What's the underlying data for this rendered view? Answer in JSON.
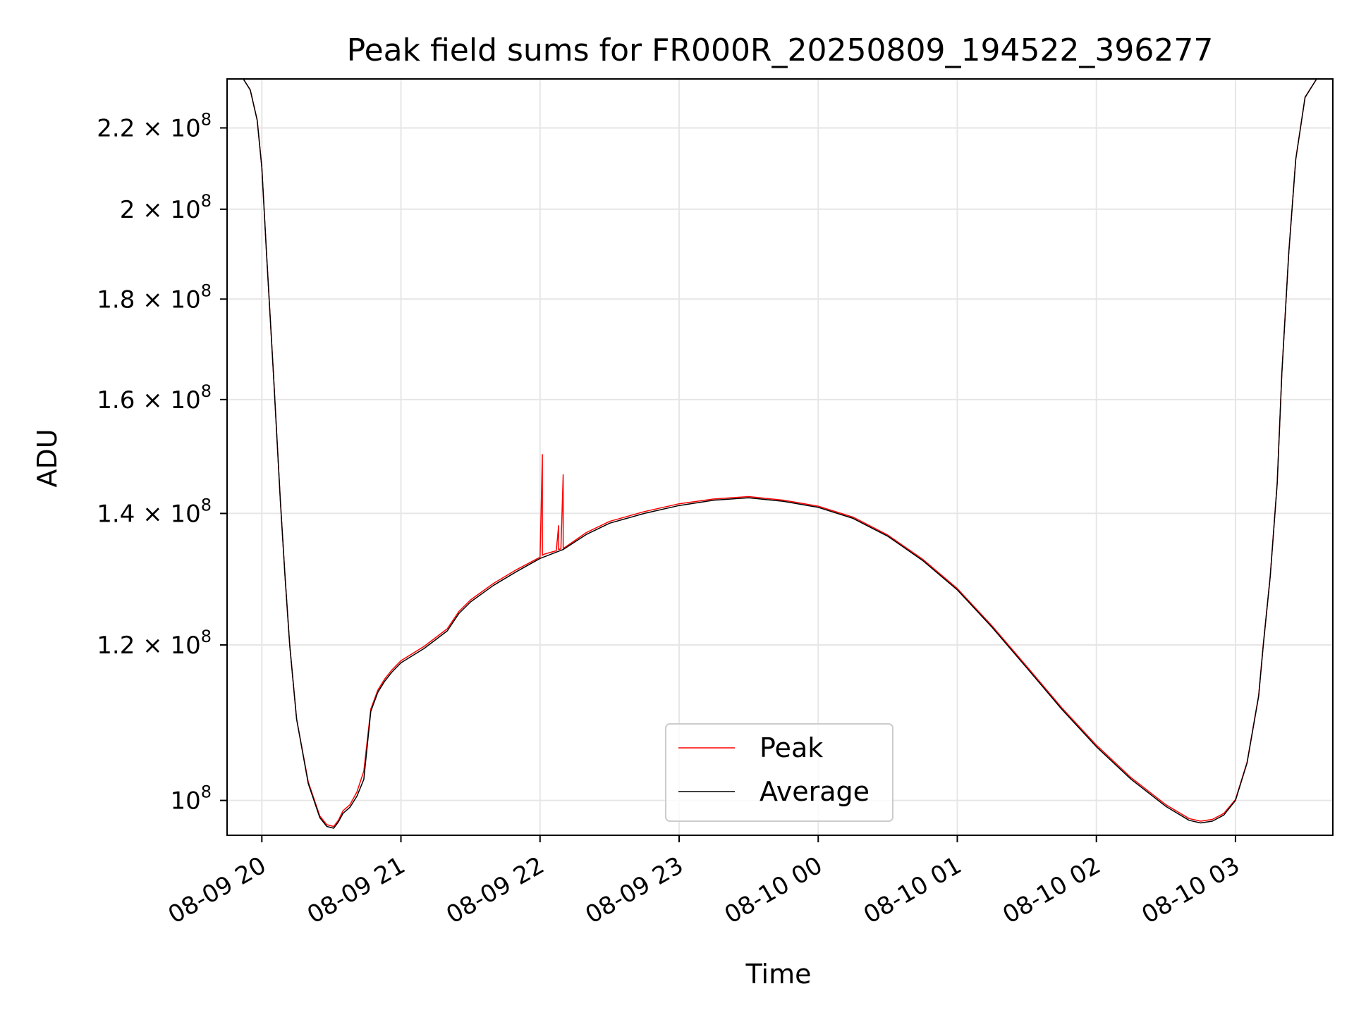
{
  "chart_data": {
    "type": "line",
    "title": "Peak field sums for FR000R_20250809_194522_396277",
    "xlabel": "Time",
    "ylabel": "ADU",
    "y_scale": "log",
    "grid": true,
    "legend_position": "lower-center",
    "xlim": [
      "2025-08-09 19:45",
      "2025-08-10 03:42"
    ],
    "ylim": [
      96000000,
      233000000
    ],
    "x_ticks": [
      {
        "value": "2025-08-09 20:00",
        "label": "08-09 20"
      },
      {
        "value": "2025-08-09 21:00",
        "label": "08-09 21"
      },
      {
        "value": "2025-08-09 22:00",
        "label": "08-09 22"
      },
      {
        "value": "2025-08-09 23:00",
        "label": "08-09 23"
      },
      {
        "value": "2025-08-10 00:00",
        "label": "08-10 00"
      },
      {
        "value": "2025-08-10 01:00",
        "label": "08-10 01"
      },
      {
        "value": "2025-08-10 02:00",
        "label": "08-10 02"
      },
      {
        "value": "2025-08-10 03:00",
        "label": "08-10 03"
      }
    ],
    "y_ticks": [
      {
        "value": 100000000,
        "mantissa": "10",
        "exponent": "8"
      },
      {
        "value": 120000000,
        "mantissa": "1.2 × 10",
        "exponent": "8"
      },
      {
        "value": 140000000,
        "mantissa": "1.4 × 10",
        "exponent": "8"
      },
      {
        "value": 160000000,
        "mantissa": "1.6 × 10",
        "exponent": "8"
      },
      {
        "value": 180000000,
        "mantissa": "1.8 × 10",
        "exponent": "8"
      },
      {
        "value": 200000000,
        "mantissa": "2 × 10",
        "exponent": "8"
      },
      {
        "value": 220000000,
        "mantissa": "2.2 × 10",
        "exponent": "8"
      }
    ],
    "series": [
      {
        "name": "Average",
        "color": "#000000",
        "x": [
          "2025-08-09 19:45",
          "2025-08-09 19:52",
          "2025-08-09 19:55",
          "2025-08-09 19:58",
          "2025-08-09 20:00",
          "2025-08-09 20:02",
          "2025-08-09 20:05",
          "2025-08-09 20:08",
          "2025-08-09 20:10",
          "2025-08-09 20:12",
          "2025-08-09 20:15",
          "2025-08-09 20:20",
          "2025-08-09 20:25",
          "2025-08-09 20:28",
          "2025-08-09 20:31",
          "2025-08-09 20:33",
          "2025-08-09 20:35",
          "2025-08-09 20:38",
          "2025-08-09 20:41",
          "2025-08-09 20:44",
          "2025-08-09 20:47",
          "2025-08-09 20:50",
          "2025-08-09 20:52",
          "2025-08-09 20:53",
          "2025-08-09 20:56",
          "2025-08-09 21:00",
          "2025-08-09 21:10",
          "2025-08-09 21:20",
          "2025-08-09 21:25",
          "2025-08-09 21:30",
          "2025-08-09 21:40",
          "2025-08-09 21:50",
          "2025-08-09 22:00",
          "2025-08-09 22:10",
          "2025-08-09 22:20",
          "2025-08-09 22:30",
          "2025-08-09 22:45",
          "2025-08-09 23:00",
          "2025-08-09 23:15",
          "2025-08-09 23:30",
          "2025-08-09 23:45",
          "2025-08-10 00:00",
          "2025-08-10 00:15",
          "2025-08-10 00:30",
          "2025-08-10 00:45",
          "2025-08-10 01:00",
          "2025-08-10 01:15",
          "2025-08-10 01:30",
          "2025-08-10 01:45",
          "2025-08-10 02:00",
          "2025-08-10 02:15",
          "2025-08-10 02:30",
          "2025-08-10 02:40",
          "2025-08-10 02:45",
          "2025-08-10 02:50",
          "2025-08-10 02:55",
          "2025-08-10 03:00",
          "2025-08-10 03:05",
          "2025-08-10 03:10",
          "2025-08-10 03:12",
          "2025-08-10 03:15",
          "2025-08-10 03:18",
          "2025-08-10 03:20",
          "2025-08-10 03:23",
          "2025-08-10 03:26",
          "2025-08-10 03:30",
          "2025-08-10 03:35",
          "2025-08-10 03:42"
        ],
        "values": [
          233000000,
          233000000,
          230000000,
          222000000,
          210000000,
          190000000,
          165000000,
          142000000,
          130000000,
          120000000,
          110000000,
          102000000,
          98000000,
          97000000,
          96800000,
          97500000,
          98500000,
          99200000,
          100500000,
          102500000,
          111000000,
          113500000,
          114500000,
          115000000,
          116200000,
          117500000,
          119500000,
          122000000,
          124500000,
          126200000,
          128700000,
          130800000,
          132800000,
          134200000,
          136600000,
          138400000,
          140000000,
          141300000,
          142200000,
          142600000,
          142000000,
          141000000,
          139200000,
          136300000,
          132500000,
          128000000,
          122500000,
          116800000,
          111300000,
          106500000,
          102500000,
          99300000,
          97700000,
          97400000,
          97600000,
          98300000,
          100000000,
          104500000,
          113000000,
          120000000,
          130000000,
          145000000,
          165000000,
          190000000,
          212000000,
          228000000,
          233000000,
          233000000
        ]
      },
      {
        "name": "Peak",
        "color": "#ff0000",
        "x": [
          "2025-08-09 19:45",
          "2025-08-09 19:52",
          "2025-08-09 19:55",
          "2025-08-09 19:58",
          "2025-08-09 20:00",
          "2025-08-09 20:02",
          "2025-08-09 20:05",
          "2025-08-09 20:08",
          "2025-08-09 20:10",
          "2025-08-09 20:12",
          "2025-08-09 20:15",
          "2025-08-09 20:20",
          "2025-08-09 20:25",
          "2025-08-09 20:28",
          "2025-08-09 20:31",
          "2025-08-09 20:33",
          "2025-08-09 20:35",
          "2025-08-09 20:38",
          "2025-08-09 20:41",
          "2025-08-09 20:44",
          "2025-08-09 20:47",
          "2025-08-09 20:50",
          "2025-08-09 20:52",
          "2025-08-09 20:53",
          "2025-08-09 20:56",
          "2025-08-09 21:00",
          "2025-08-09 21:10",
          "2025-08-09 21:20",
          "2025-08-09 21:25",
          "2025-08-09 21:30",
          "2025-08-09 21:40",
          "2025-08-09 21:50",
          "2025-08-09 22:00",
          "2025-08-09 22:01",
          "2025-08-09 22:01",
          "2025-08-09 22:02",
          "2025-08-09 22:07",
          "2025-08-09 22:08",
          "2025-08-09 22:08",
          "2025-08-09 22:09",
          "2025-08-09 22:10",
          "2025-08-09 22:10",
          "2025-08-09 22:11",
          "2025-08-09 22:20",
          "2025-08-09 22:30",
          "2025-08-09 22:45",
          "2025-08-09 23:00",
          "2025-08-09 23:15",
          "2025-08-09 23:30",
          "2025-08-09 23:45",
          "2025-08-10 00:00",
          "2025-08-10 00:15",
          "2025-08-10 00:30",
          "2025-08-10 00:45",
          "2025-08-10 01:00",
          "2025-08-10 01:15",
          "2025-08-10 01:30",
          "2025-08-10 01:45",
          "2025-08-10 02:00",
          "2025-08-10 02:15",
          "2025-08-10 02:30",
          "2025-08-10 02:40",
          "2025-08-10 02:45",
          "2025-08-10 02:50",
          "2025-08-10 02:55",
          "2025-08-10 03:00",
          "2025-08-10 03:05",
          "2025-08-10 03:10",
          "2025-08-10 03:12",
          "2025-08-10 03:15",
          "2025-08-10 03:18",
          "2025-08-10 03:20",
          "2025-08-10 03:23",
          "2025-08-10 03:26",
          "2025-08-10 03:30",
          "2025-08-10 03:35",
          "2025-08-10 03:42"
        ],
        "values": [
          233000000,
          233000000,
          230000000,
          222000000,
          210000000,
          190000000,
          165000000,
          142000000,
          130000000,
          120000000,
          110000000,
          102200000,
          98200000,
          97200000,
          97000000,
          97700000,
          98800000,
          99500000,
          101000000,
          103500000,
          111300000,
          113800000,
          114800000,
          115300000,
          116500000,
          117800000,
          119800000,
          122300000,
          124800000,
          126500000,
          129000000,
          131100000,
          133000000,
          150000000,
          133300000,
          133500000,
          134000000,
          138000000,
          134200000,
          134300000,
          146500000,
          134400000,
          134600000,
          136900000,
          138700000,
          140300000,
          141600000,
          142400000,
          142800000,
          142200000,
          141200000,
          139400000,
          136500000,
          132700000,
          128200000,
          122700000,
          117000000,
          111500000,
          106700000,
          102700000,
          99500000,
          97900000,
          97600000,
          97800000,
          98500000,
          100100000,
          104600000,
          113100000,
          120100000,
          130100000,
          145100000,
          165100000,
          190100000,
          212100000,
          228100000,
          233000000,
          233000000
        ]
      }
    ]
  }
}
